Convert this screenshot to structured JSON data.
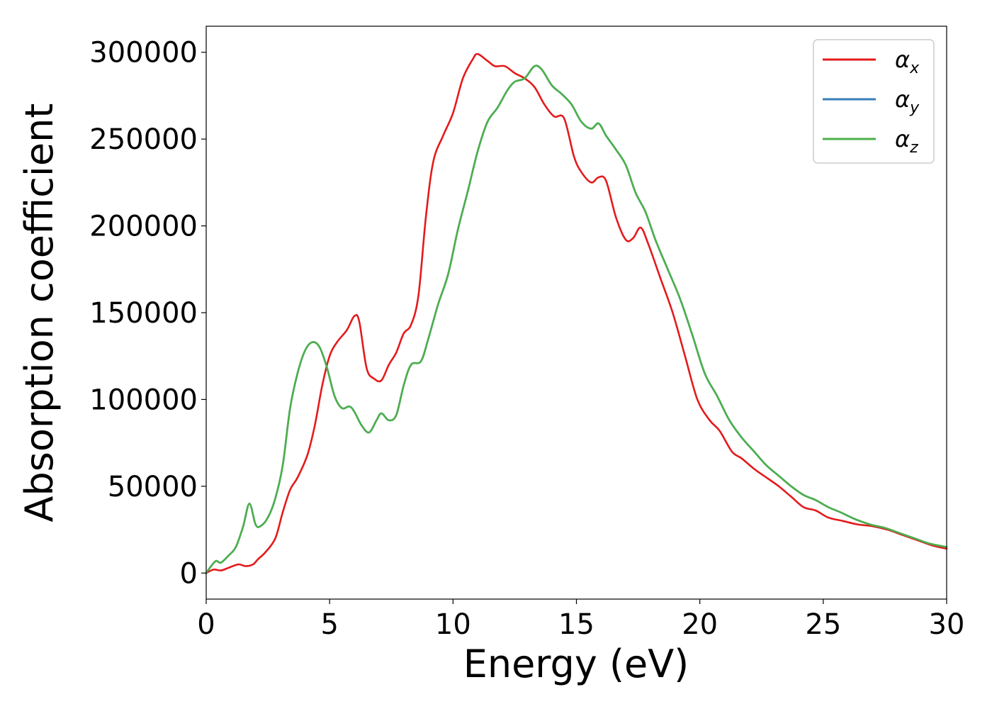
{
  "chart_data": {
    "type": "line",
    "title": "",
    "xlabel": "Energy (eV)",
    "ylabel": "Absorption coefficient",
    "xlim": [
      0,
      30
    ],
    "ylim": [
      -15000,
      315000
    ],
    "xticks": [
      0,
      5,
      10,
      15,
      20,
      25,
      30
    ],
    "yticks": [
      0,
      50000,
      100000,
      150000,
      200000,
      250000,
      300000
    ],
    "xtick_labels": [
      "0",
      "5",
      "10",
      "15",
      "20",
      "25",
      "30"
    ],
    "ytick_labels": [
      "0",
      "50000",
      "100000",
      "150000",
      "200000",
      "250000",
      "300000"
    ],
    "grid": false,
    "legend_position": "top-right",
    "series": [
      {
        "name": "α_x",
        "legend_base": "α",
        "legend_sub": "x",
        "color": "#e41a1c",
        "x": [
          0,
          0.3,
          0.6,
          0.9,
          1.3,
          1.6,
          1.9,
          2.1,
          2.4,
          2.8,
          3.1,
          3.4,
          3.7,
          4.1,
          4.4,
          4.7,
          5.0,
          5.3,
          5.7,
          6.0,
          6.2,
          6.5,
          6.8,
          7.1,
          7.4,
          7.7,
          8.0,
          8.3,
          8.6,
          8.9,
          9.2,
          9.6,
          10.0,
          10.4,
          10.8,
          11.0,
          11.4,
          11.7,
          12.1,
          12.5,
          12.9,
          13.3,
          13.7,
          14.1,
          14.5,
          14.9,
          15.2,
          15.6,
          15.9,
          16.2,
          16.6,
          17.0,
          17.3,
          17.6,
          17.9,
          18.4,
          18.9,
          19.4,
          19.9,
          20.4,
          20.8,
          21.3,
          21.7,
          22.2,
          22.7,
          23.2,
          23.7,
          24.2,
          24.7,
          25.2,
          25.8,
          26.4,
          27.0,
          27.6,
          28.2,
          28.8,
          29.4,
          30.0
        ],
        "values": [
          0,
          2000,
          1500,
          3000,
          5000,
          4000,
          5000,
          8000,
          12000,
          20000,
          35000,
          48000,
          55000,
          68000,
          85000,
          108000,
          125000,
          133000,
          140000,
          148000,
          145000,
          118000,
          112000,
          111000,
          120000,
          127000,
          138000,
          143000,
          160000,
          205000,
          237000,
          252000,
          265000,
          285000,
          296000,
          299000,
          295000,
          292000,
          292000,
          288000,
          285000,
          280000,
          270000,
          263000,
          262000,
          240000,
          231000,
          225000,
          228000,
          226000,
          205000,
          192000,
          193000,
          199000,
          190000,
          170000,
          150000,
          125000,
          100000,
          88000,
          82000,
          70000,
          66000,
          60000,
          55000,
          50000,
          44000,
          38000,
          36000,
          32000,
          30000,
          28000,
          27000,
          25000,
          22000,
          19000,
          16000,
          14000
        ]
      },
      {
        "name": "α_y",
        "legend_base": "α",
        "legend_sub": "y",
        "color": "#377eb8",
        "x": [
          0,
          0.2,
          0.4,
          0.6,
          0.9,
          1.2,
          1.5,
          1.75,
          2.0,
          2.2,
          2.5,
          2.8,
          3.1,
          3.4,
          3.7,
          4.0,
          4.3,
          4.6,
          4.9,
          5.2,
          5.5,
          5.8,
          6.0,
          6.3,
          6.6,
          6.9,
          7.1,
          7.4,
          7.7,
          8.0,
          8.3,
          8.7,
          9.0,
          9.4,
          9.8,
          10.2,
          10.6,
          11.0,
          11.4,
          11.8,
          12.2,
          12.5,
          12.9,
          13.3,
          13.6,
          14.0,
          14.4,
          14.8,
          15.2,
          15.6,
          15.9,
          16.2,
          16.6,
          17.0,
          17.4,
          17.8,
          18.2,
          18.7,
          19.2,
          19.7,
          20.2,
          20.7,
          21.2,
          21.7,
          22.2,
          22.7,
          23.2,
          23.7,
          24.2,
          24.7,
          25.2,
          25.7,
          26.3,
          26.9,
          27.5,
          28.1,
          28.7,
          29.3,
          30.0
        ],
        "values": [
          0,
          4000,
          7000,
          6000,
          10000,
          15000,
          27000,
          40000,
          28000,
          27000,
          32000,
          43000,
          62000,
          95000,
          115000,
          128000,
          133000,
          130000,
          118000,
          102000,
          95000,
          96000,
          93000,
          85000,
          81000,
          88000,
          92000,
          88000,
          91000,
          108000,
          120000,
          122000,
          135000,
          155000,
          172000,
          198000,
          220000,
          243000,
          260000,
          268000,
          278000,
          283000,
          285000,
          292000,
          290000,
          281000,
          276000,
          270000,
          260000,
          256000,
          259000,
          252000,
          244000,
          235000,
          219000,
          208000,
          192000,
          175000,
          158000,
          137000,
          115000,
          102000,
          88000,
          78000,
          70000,
          62000,
          56000,
          50000,
          45000,
          42000,
          38000,
          35000,
          31000,
          28000,
          26000,
          23000,
          20000,
          17000,
          15000
        ]
      },
      {
        "name": "α_z",
        "legend_base": "α",
        "legend_sub": "z",
        "color": "#4daf4a",
        "x": [
          0,
          0.2,
          0.4,
          0.6,
          0.9,
          1.2,
          1.5,
          1.75,
          2.0,
          2.2,
          2.5,
          2.8,
          3.1,
          3.4,
          3.7,
          4.0,
          4.3,
          4.6,
          4.9,
          5.2,
          5.5,
          5.8,
          6.0,
          6.3,
          6.6,
          6.9,
          7.1,
          7.4,
          7.7,
          8.0,
          8.3,
          8.7,
          9.0,
          9.4,
          9.8,
          10.2,
          10.6,
          11.0,
          11.4,
          11.8,
          12.2,
          12.5,
          12.9,
          13.3,
          13.6,
          14.0,
          14.4,
          14.8,
          15.2,
          15.6,
          15.9,
          16.2,
          16.6,
          17.0,
          17.4,
          17.8,
          18.2,
          18.7,
          19.2,
          19.7,
          20.2,
          20.7,
          21.2,
          21.7,
          22.2,
          22.7,
          23.2,
          23.7,
          24.2,
          24.7,
          25.2,
          25.7,
          26.3,
          26.9,
          27.5,
          28.1,
          28.7,
          29.3,
          30.0
        ],
        "values": [
          0,
          4000,
          7000,
          6000,
          10000,
          15000,
          27000,
          40000,
          28000,
          27000,
          32000,
          43000,
          62000,
          95000,
          115000,
          128000,
          133000,
          130000,
          118000,
          102000,
          95000,
          96000,
          93000,
          85000,
          81000,
          88000,
          92000,
          88000,
          91000,
          108000,
          120000,
          122000,
          135000,
          155000,
          172000,
          198000,
          220000,
          243000,
          260000,
          268000,
          278000,
          283000,
          285000,
          292000,
          290000,
          281000,
          276000,
          270000,
          260000,
          256000,
          259000,
          252000,
          244000,
          235000,
          219000,
          208000,
          192000,
          175000,
          158000,
          137000,
          115000,
          102000,
          88000,
          78000,
          70000,
          62000,
          56000,
          50000,
          45000,
          42000,
          38000,
          35000,
          31000,
          28000,
          26000,
          23000,
          20000,
          17000,
          15000
        ]
      }
    ]
  }
}
